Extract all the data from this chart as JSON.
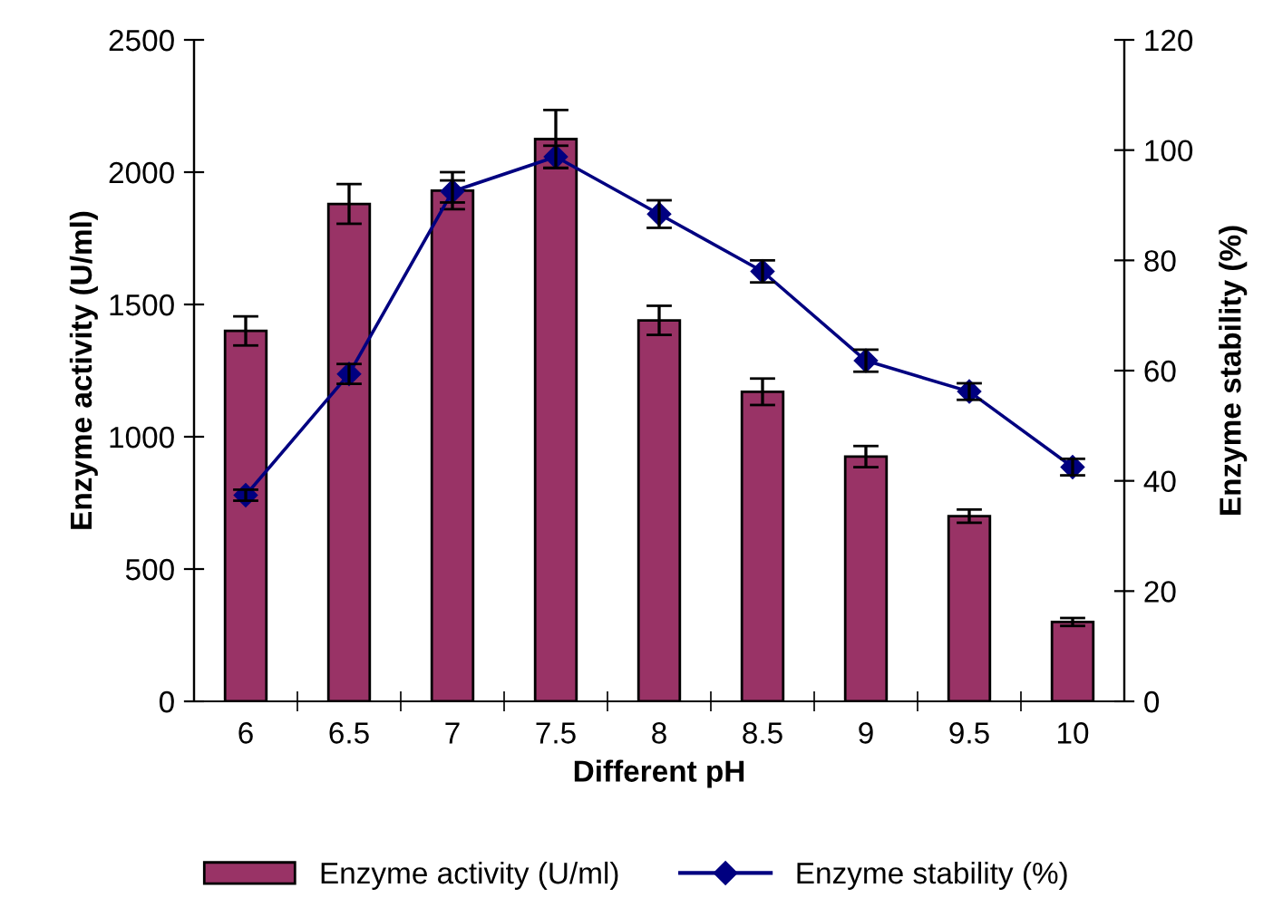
{
  "chart_data": {
    "type": "bar",
    "xlabel": "Different pH",
    "ylabel": "Enzyme activity (U/ml)",
    "y2label": "Enzyme stability (%)",
    "categories": [
      "6",
      "6.5",
      "7",
      "7.5",
      "8",
      "8.5",
      "9",
      "9.5",
      "10"
    ],
    "series": [
      {
        "name": "Enzyme activity (U/ml)",
        "color": "#993366",
        "values": [
          1400,
          1880,
          1930,
          2125,
          1440,
          1170,
          925,
          700,
          300
        ],
        "errors": [
          55,
          75,
          70,
          110,
          55,
          50,
          40,
          25,
          15
        ]
      },
      {
        "name": "Enzyme stability (%)",
        "type": "line",
        "axis": "y2",
        "color": "#000080",
        "marker": "diamond",
        "values": [
          37.4,
          59.4,
          92.5,
          98.8,
          88.4,
          78,
          61.8,
          56.2,
          42.5
        ],
        "errors": [
          1,
          1.8,
          2,
          2,
          2.5,
          2,
          2,
          1.5,
          1.5
        ]
      }
    ],
    "ylim": [
      0,
      2500
    ],
    "yticks": [
      0,
      500,
      1000,
      1500,
      2000,
      2500
    ],
    "y2lim": [
      0,
      120
    ],
    "y2ticks": [
      0,
      20,
      40,
      60,
      80,
      100,
      120
    ],
    "grid": false,
    "legend": "bottom"
  }
}
